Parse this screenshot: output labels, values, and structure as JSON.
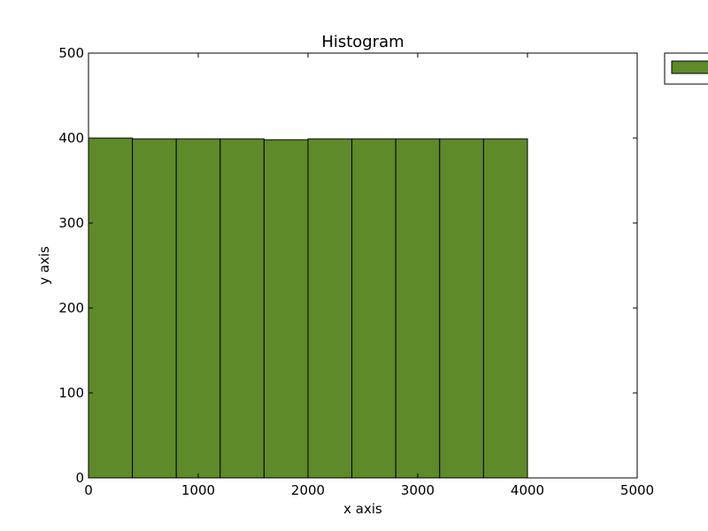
{
  "chart_data": {
    "type": "bar",
    "title": "Histogram",
    "xlabel": "x axis",
    "ylabel": "y axis",
    "xlim": [
      0,
      5000
    ],
    "ylim": [
      0,
      500
    ],
    "xticks": [
      0,
      1000,
      2000,
      3000,
      4000,
      5000
    ],
    "yticks": [
      0,
      100,
      200,
      300,
      400,
      500
    ],
    "bin_edges": [
      0,
      400,
      800,
      1200,
      1600,
      2000,
      2400,
      2800,
      3200,
      3600,
      4000
    ],
    "values": [
      400,
      399,
      399,
      399,
      398,
      399,
      399,
      399,
      399,
      399
    ],
    "bar_color": "#5e8a2a",
    "edge_color": "#000000",
    "grid": false,
    "legend": {
      "placement": "outside-top-right",
      "entries": [
        {
          "color": "#5e8a2a"
        }
      ]
    }
  }
}
